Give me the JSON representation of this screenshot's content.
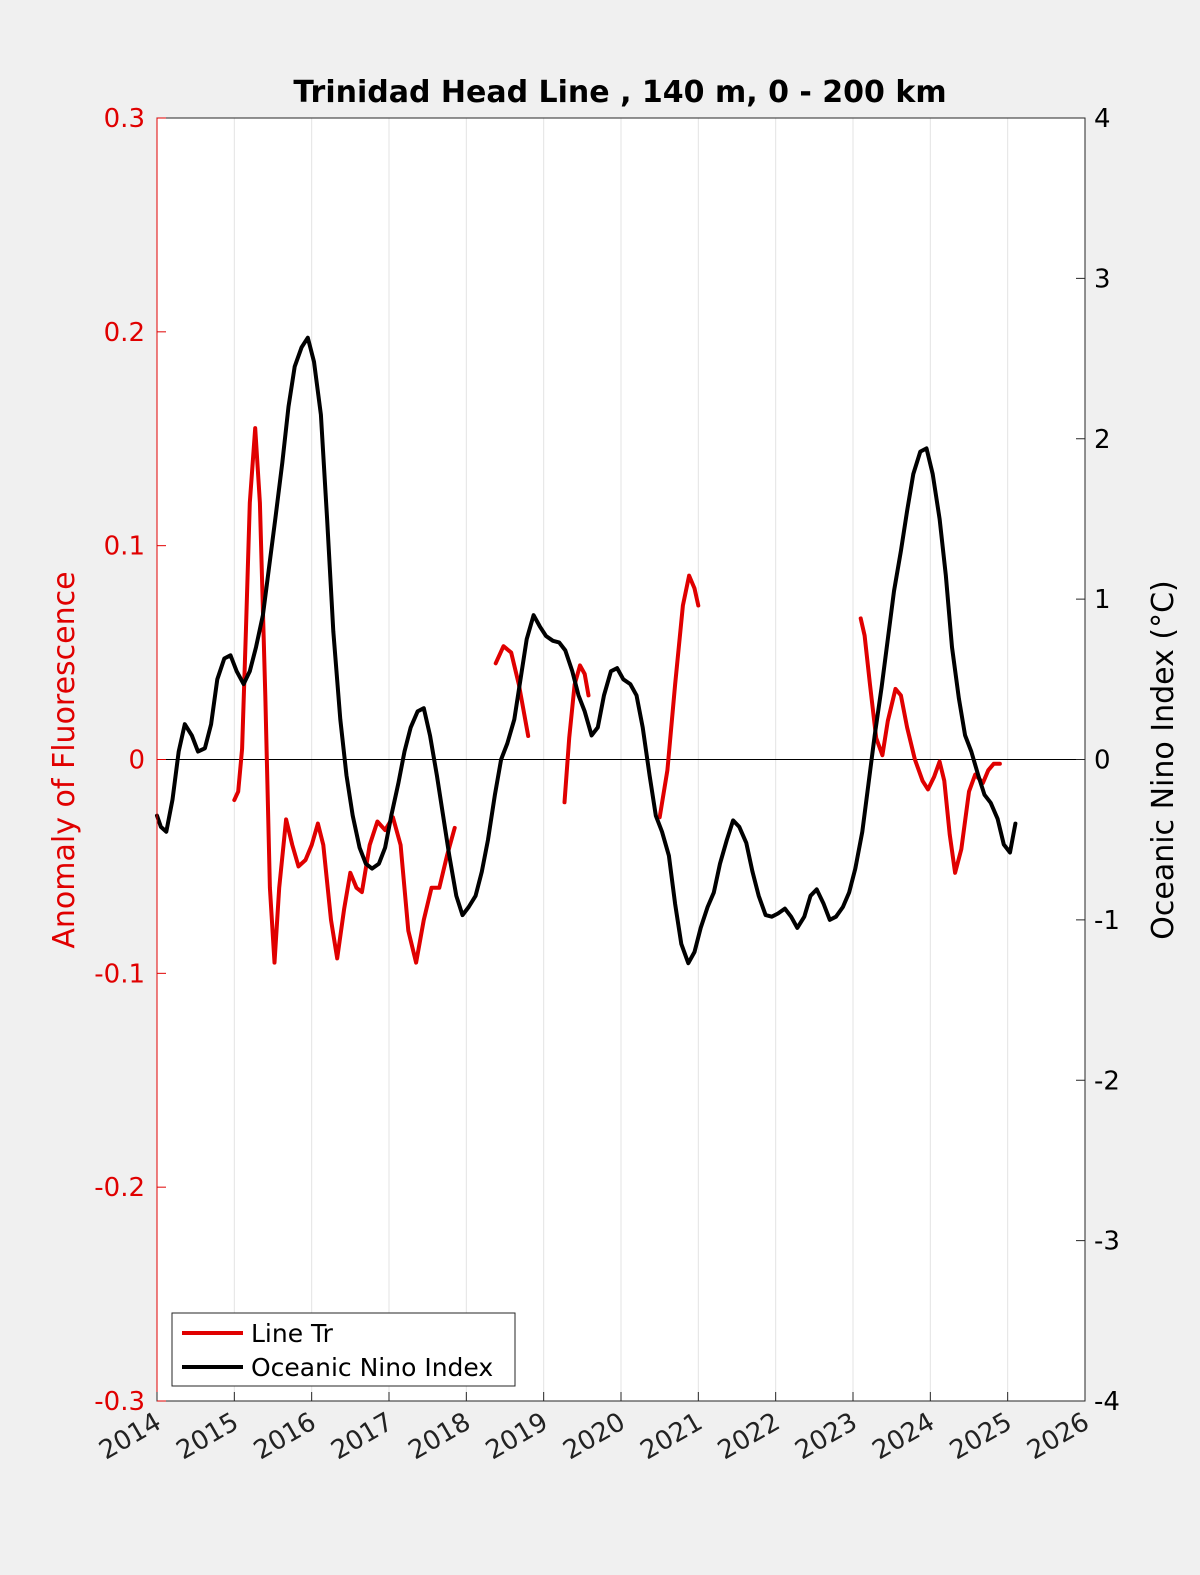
{
  "chart_data": {
    "type": "line",
    "title": "Trinidad Head Line , 140 m, 0 - 200 km",
    "ylabel": "Anomaly of Fluorescence",
    "ylabel_right": "Oceanic Nino Index (°C)",
    "xlabel": "",
    "xlim": [
      2014,
      2026
    ],
    "ylim": [
      -0.3,
      0.3
    ],
    "ylim_right": [
      -4,
      4
    ],
    "x_ticks": [
      "2014",
      "2015",
      "2016",
      "2017",
      "2018",
      "2019",
      "2020",
      "2021",
      "2022",
      "2023",
      "2024",
      "2025",
      "2026"
    ],
    "y_ticks": [
      "-0.3",
      "-0.2",
      "-0.1",
      "0",
      "0.1",
      "0.2",
      "0.3"
    ],
    "y_ticks_right": [
      "-4",
      "-3",
      "-2",
      "-1",
      "0",
      "1",
      "2",
      "3",
      "4"
    ],
    "grid": "vertical",
    "legend_position": "bottom-left",
    "colors": {
      "line_tr": "#e00000",
      "oni": "#000000",
      "left_axis": "#e00000"
    },
    "series": [
      {
        "name": "Line Tr",
        "axis": "left",
        "segments": [
          [
            [
              2015.0,
              -0.019
            ],
            [
              2015.05,
              -0.015
            ],
            [
              2015.1,
              0.005
            ],
            [
              2015.15,
              0.06
            ],
            [
              2015.2,
              0.12
            ],
            [
              2015.27,
              0.155
            ],
            [
              2015.33,
              0.12
            ],
            [
              2015.4,
              0.03
            ],
            [
              2015.46,
              -0.06
            ],
            [
              2015.52,
              -0.095
            ],
            [
              2015.58,
              -0.06
            ],
            [
              2015.67,
              -0.028
            ],
            [
              2015.75,
              -0.04
            ],
            [
              2015.83,
              -0.05
            ],
            [
              2015.92,
              -0.047
            ],
            [
              2016.0,
              -0.04
            ],
            [
              2016.08,
              -0.03
            ],
            [
              2016.15,
              -0.04
            ],
            [
              2016.25,
              -0.075
            ],
            [
              2016.33,
              -0.093
            ],
            [
              2016.42,
              -0.07
            ],
            [
              2016.5,
              -0.053
            ],
            [
              2016.58,
              -0.06
            ],
            [
              2016.65,
              -0.062
            ],
            [
              2016.75,
              -0.04
            ],
            [
              2016.85,
              -0.029
            ],
            [
              2016.95,
              -0.033
            ],
            [
              2017.05,
              -0.027
            ],
            [
              2017.15,
              -0.04
            ],
            [
              2017.25,
              -0.08
            ],
            [
              2017.35,
              -0.095
            ],
            [
              2017.45,
              -0.075
            ],
            [
              2017.55,
              -0.06
            ],
            [
              2017.65,
              -0.06
            ],
            [
              2017.75,
              -0.045
            ],
            [
              2017.85,
              -0.032
            ]
          ],
          [
            [
              2018.38,
              0.045
            ],
            [
              2018.48,
              0.053
            ],
            [
              2018.58,
              0.05
            ],
            [
              2018.68,
              0.035
            ],
            [
              2018.8,
              0.011
            ]
          ],
          [
            [
              2019.27,
              -0.02
            ],
            [
              2019.33,
              0.01
            ],
            [
              2019.4,
              0.035
            ],
            [
              2019.47,
              0.044
            ],
            [
              2019.53,
              0.04
            ],
            [
              2019.58,
              0.03
            ]
          ],
          [
            [
              2020.5,
              -0.027
            ],
            [
              2020.6,
              -0.005
            ],
            [
              2020.7,
              0.035
            ],
            [
              2020.8,
              0.072
            ],
            [
              2020.88,
              0.086
            ],
            [
              2020.95,
              0.08
            ],
            [
              2021.0,
              0.072
            ]
          ],
          [
            [
              2023.1,
              0.066
            ],
            [
              2023.15,
              0.058
            ],
            [
              2023.22,
              0.035
            ],
            [
              2023.3,
              0.01
            ],
            [
              2023.38,
              0.002
            ],
            [
              2023.45,
              0.018
            ],
            [
              2023.55,
              0.033
            ],
            [
              2023.62,
              0.03
            ],
            [
              2023.7,
              0.015
            ],
            [
              2023.8,
              0.0
            ],
            [
              2023.9,
              -0.01
            ],
            [
              2023.97,
              -0.014
            ],
            [
              2024.05,
              -0.008
            ],
            [
              2024.12,
              -0.001
            ],
            [
              2024.18,
              -0.01
            ],
            [
              2024.25,
              -0.035
            ],
            [
              2024.32,
              -0.053
            ],
            [
              2024.4,
              -0.042
            ],
            [
              2024.5,
              -0.015
            ],
            [
              2024.58,
              -0.007
            ],
            [
              2024.68,
              -0.011
            ],
            [
              2024.75,
              -0.005
            ],
            [
              2024.82,
              -0.002
            ],
            [
              2024.9,
              -0.002
            ]
          ]
        ]
      },
      {
        "name": "Oceanic Nino Index",
        "axis": "right",
        "segments": [
          [
            [
              2014.0,
              -0.35
            ],
            [
              2014.05,
              -0.42
            ],
            [
              2014.12,
              -0.45
            ],
            [
              2014.2,
              -0.25
            ],
            [
              2014.28,
              0.05
            ],
            [
              2014.36,
              0.22
            ],
            [
              2014.45,
              0.15
            ],
            [
              2014.53,
              0.05
            ],
            [
              2014.62,
              0.07
            ],
            [
              2014.7,
              0.22
            ],
            [
              2014.78,
              0.5
            ],
            [
              2014.87,
              0.63
            ],
            [
              2014.95,
              0.65
            ],
            [
              2015.03,
              0.55
            ],
            [
              2015.12,
              0.47
            ],
            [
              2015.2,
              0.55
            ],
            [
              2015.28,
              0.7
            ],
            [
              2015.37,
              0.9
            ],
            [
              2015.45,
              1.2
            ],
            [
              2015.53,
              1.5
            ],
            [
              2015.62,
              1.85
            ],
            [
              2015.7,
              2.2
            ],
            [
              2015.78,
              2.45
            ],
            [
              2015.87,
              2.57
            ],
            [
              2015.95,
              2.63
            ],
            [
              2016.03,
              2.48
            ],
            [
              2016.12,
              2.15
            ],
            [
              2016.2,
              1.5
            ],
            [
              2016.28,
              0.8
            ],
            [
              2016.37,
              0.25
            ],
            [
              2016.45,
              -0.1
            ],
            [
              2016.53,
              -0.35
            ],
            [
              2016.62,
              -0.55
            ],
            [
              2016.7,
              -0.65
            ],
            [
              2016.78,
              -0.68
            ],
            [
              2016.87,
              -0.65
            ],
            [
              2016.95,
              -0.55
            ],
            [
              2017.03,
              -0.35
            ],
            [
              2017.12,
              -0.15
            ],
            [
              2017.2,
              0.05
            ],
            [
              2017.28,
              0.2
            ],
            [
              2017.37,
              0.3
            ],
            [
              2017.45,
              0.32
            ],
            [
              2017.53,
              0.15
            ],
            [
              2017.62,
              -0.1
            ],
            [
              2017.7,
              -0.35
            ],
            [
              2017.78,
              -0.6
            ],
            [
              2017.87,
              -0.85
            ],
            [
              2017.95,
              -0.97
            ],
            [
              2018.03,
              -0.92
            ],
            [
              2018.12,
              -0.85
            ],
            [
              2018.2,
              -0.7
            ],
            [
              2018.28,
              -0.5
            ],
            [
              2018.37,
              -0.22
            ],
            [
              2018.45,
              0.0
            ],
            [
              2018.53,
              0.1
            ],
            [
              2018.62,
              0.25
            ],
            [
              2018.7,
              0.5
            ],
            [
              2018.78,
              0.75
            ],
            [
              2018.87,
              0.9
            ],
            [
              2018.95,
              0.83
            ],
            [
              2019.03,
              0.77
            ],
            [
              2019.12,
              0.74
            ],
            [
              2019.2,
              0.73
            ],
            [
              2019.28,
              0.68
            ],
            [
              2019.37,
              0.55
            ],
            [
              2019.45,
              0.4
            ],
            [
              2019.53,
              0.3
            ],
            [
              2019.62,
              0.15
            ],
            [
              2019.7,
              0.2
            ],
            [
              2019.78,
              0.4
            ],
            [
              2019.87,
              0.55
            ],
            [
              2019.95,
              0.57
            ],
            [
              2020.03,
              0.5
            ],
            [
              2020.12,
              0.47
            ],
            [
              2020.2,
              0.4
            ],
            [
              2020.28,
              0.2
            ],
            [
              2020.37,
              -0.1
            ],
            [
              2020.45,
              -0.35
            ],
            [
              2020.53,
              -0.45
            ],
            [
              2020.62,
              -0.6
            ],
            [
              2020.7,
              -0.9
            ],
            [
              2020.78,
              -1.15
            ],
            [
              2020.87,
              -1.27
            ],
            [
              2020.95,
              -1.2
            ],
            [
              2021.03,
              -1.05
            ],
            [
              2021.12,
              -0.92
            ],
            [
              2021.2,
              -0.83
            ],
            [
              2021.28,
              -0.65
            ],
            [
              2021.37,
              -0.5
            ],
            [
              2021.45,
              -0.38
            ],
            [
              2021.53,
              -0.42
            ],
            [
              2021.62,
              -0.52
            ],
            [
              2021.7,
              -0.7
            ],
            [
              2021.78,
              -0.85
            ],
            [
              2021.87,
              -0.97
            ],
            [
              2021.95,
              -0.98
            ],
            [
              2022.03,
              -0.96
            ],
            [
              2022.12,
              -0.93
            ],
            [
              2022.2,
              -0.98
            ],
            [
              2022.28,
              -1.05
            ],
            [
              2022.37,
              -0.98
            ],
            [
              2022.45,
              -0.85
            ],
            [
              2022.53,
              -0.81
            ],
            [
              2022.62,
              -0.9
            ],
            [
              2022.7,
              -1.0
            ],
            [
              2022.78,
              -0.98
            ],
            [
              2022.87,
              -0.92
            ],
            [
              2022.95,
              -0.83
            ],
            [
              2023.03,
              -0.68
            ],
            [
              2023.12,
              -0.45
            ],
            [
              2023.2,
              -0.15
            ],
            [
              2023.28,
              0.15
            ],
            [
              2023.37,
              0.45
            ],
            [
              2023.45,
              0.75
            ],
            [
              2023.53,
              1.05
            ],
            [
              2023.62,
              1.3
            ],
            [
              2023.7,
              1.55
            ],
            [
              2023.78,
              1.78
            ],
            [
              2023.87,
              1.92
            ],
            [
              2023.95,
              1.94
            ],
            [
              2024.03,
              1.78
            ],
            [
              2024.12,
              1.5
            ],
            [
              2024.2,
              1.15
            ],
            [
              2024.28,
              0.7
            ],
            [
              2024.37,
              0.38
            ],
            [
              2024.45,
              0.15
            ],
            [
              2024.53,
              0.05
            ],
            [
              2024.62,
              -0.1
            ],
            [
              2024.7,
              -0.22
            ],
            [
              2024.78,
              -0.27
            ],
            [
              2024.87,
              -0.37
            ],
            [
              2024.95,
              -0.53
            ],
            [
              2025.03,
              -0.58
            ],
            [
              2025.1,
              -0.4
            ]
          ]
        ]
      }
    ]
  }
}
